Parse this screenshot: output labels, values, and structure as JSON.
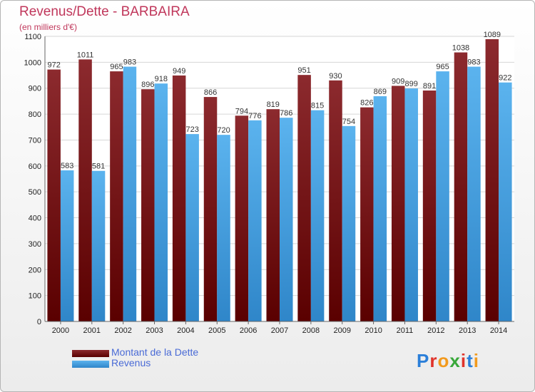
{
  "title": "Revenus/Dette - BARBAIRA",
  "subtitle": "(en milliers d'€)",
  "brand": "Proxiti",
  "chart_data": {
    "type": "bar",
    "categories": [
      "2000",
      "2001",
      "2002",
      "2003",
      "2004",
      "2005",
      "2006",
      "2007",
      "2008",
      "2009",
      "2010",
      "2011",
      "2012",
      "2013",
      "2014"
    ],
    "series": [
      {
        "name": "Montant de la Dette",
        "color": "#7a1a1f",
        "values": [
          972,
          1011,
          965,
          896,
          949,
          866,
          794,
          819,
          951,
          930,
          826,
          909,
          891,
          1038,
          1089
        ]
      },
      {
        "name": "Revenus",
        "color": "#4aa6e6",
        "values": [
          583,
          581,
          983,
          918,
          723,
          720,
          776,
          786,
          815,
          754,
          869,
          899,
          965,
          983,
          922
        ]
      }
    ],
    "ylim": [
      0,
      1100
    ],
    "yticks": [
      0,
      100,
      200,
      300,
      400,
      500,
      600,
      700,
      800,
      900,
      1000,
      1100
    ],
    "grid": true,
    "legend": "bottom-left"
  }
}
